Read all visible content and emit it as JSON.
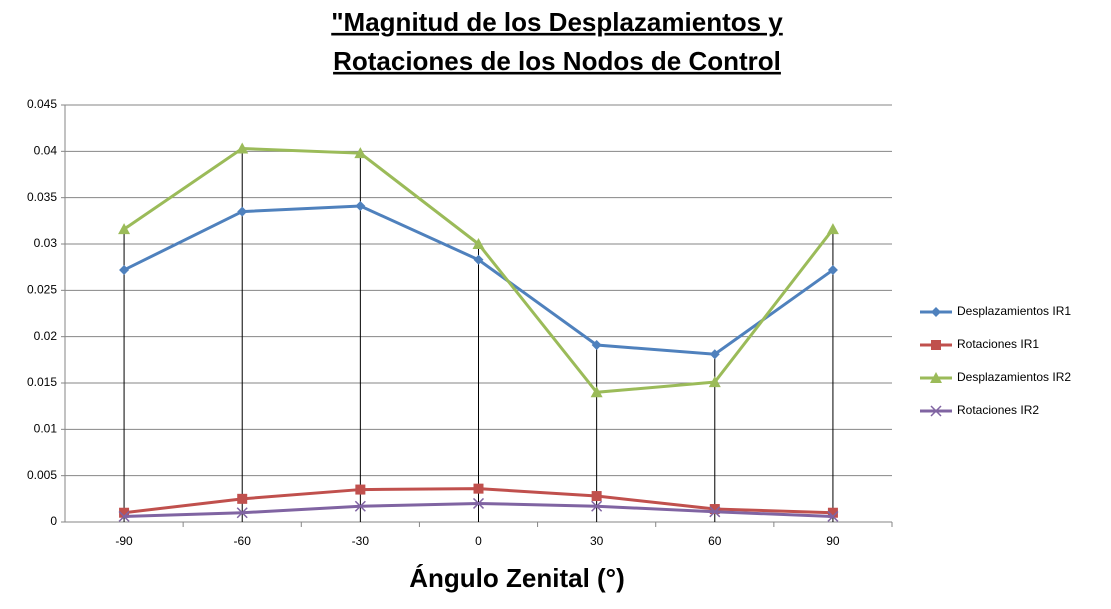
{
  "chart_data": {
    "type": "line",
    "title": [
      "\"Magnitud de los Desplazamientos y",
      "Rotaciones de los Nodos de Control"
    ],
    "x_label": "Ángulo Zenital (°)",
    "categories": [
      "-90",
      "-60",
      "-30",
      "0",
      "30",
      "60",
      "90"
    ],
    "series": [
      {
        "name": "Desplazamientos IR1",
        "color": "#4f81bd",
        "marker": "diamond",
        "values": [
          0.0272,
          0.0335,
          0.0341,
          0.0283,
          0.0191,
          0.0181,
          0.0272
        ]
      },
      {
        "name": "Rotaciones IR1",
        "color": "#c0504d",
        "marker": "square",
        "values": [
          0.001,
          0.0025,
          0.0035,
          0.0036,
          0.0028,
          0.0014,
          0.001
        ]
      },
      {
        "name": "Desplazamientos IR2",
        "color": "#9bbb59",
        "marker": "triangle",
        "values": [
          0.0316,
          0.0403,
          0.0398,
          0.03,
          0.014,
          0.0151,
          0.0316
        ]
      },
      {
        "name": "Rotaciones IR2",
        "color": "#8064a2",
        "marker": "x",
        "values": [
          0.0006,
          0.001,
          0.0017,
          0.002,
          0.0017,
          0.0011,
          0.0006
        ]
      }
    ],
    "ylim": [
      0,
      0.045
    ],
    "yticks": [
      0,
      0.005,
      0.01,
      0.015,
      0.02,
      0.025,
      0.03,
      0.035,
      0.04,
      0.045
    ],
    "grid": true,
    "drop_lines": true,
    "legend": "right"
  }
}
